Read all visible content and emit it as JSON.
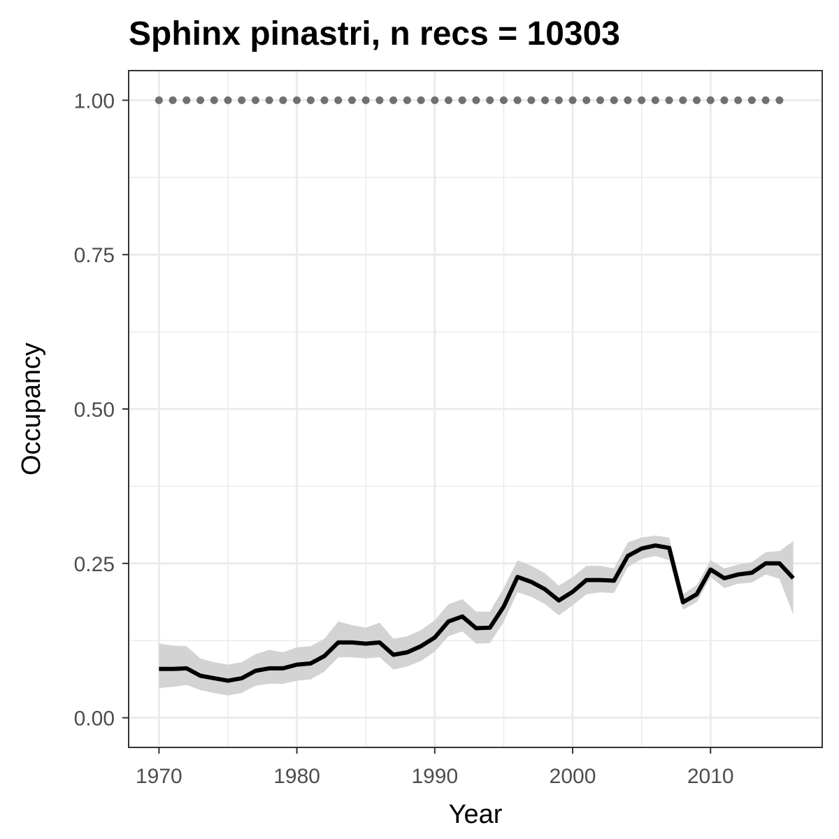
{
  "chart_data": {
    "type": "line",
    "title": "Sphinx pinastri, n recs = 10303",
    "xlabel": "Year",
    "ylabel": "Occupancy",
    "xlim": [
      1967.8,
      2018.1
    ],
    "ylim": [
      -0.048,
      1.048
    ],
    "x_ticks": [
      1970,
      1980,
      1990,
      2000,
      2010
    ],
    "x_tick_labels": [
      "1970",
      "1980",
      "1990",
      "2000",
      "2010"
    ],
    "y_ticks": [
      0,
      0.25,
      0.5,
      0.75,
      1.0
    ],
    "y_tick_labels": [
      "0.00",
      "0.25",
      "0.50",
      "0.75",
      "1.00"
    ],
    "grid": true,
    "colors": {
      "line": "#000000",
      "ribbon": "#d3d3d3",
      "points": "#707070",
      "grid": "#ebebeb",
      "border": "#333333"
    },
    "series": [
      {
        "x": [
          1970,
          1971,
          1972,
          1973,
          1974,
          1975,
          1976,
          1977,
          1978,
          1979,
          1980,
          1981,
          1982,
          1983,
          1984,
          1985,
          1986,
          1987,
          1988,
          1989,
          1990,
          1991,
          1992,
          1993,
          1994,
          1995,
          1996,
          1997,
          1998,
          1999,
          2000,
          2001,
          2002,
          2003,
          2004,
          2005,
          2006,
          2007,
          2008,
          2009,
          2010,
          2011,
          2012,
          2013,
          2014,
          2015,
          2016
        ],
        "values": [
          0.079,
          0.079,
          0.08,
          0.068,
          0.064,
          0.06,
          0.064,
          0.076,
          0.08,
          0.08,
          0.086,
          0.088,
          0.1,
          0.122,
          0.122,
          0.12,
          0.122,
          0.102,
          0.106,
          0.116,
          0.13,
          0.156,
          0.164,
          0.145,
          0.146,
          0.18,
          0.228,
          0.22,
          0.208,
          0.19,
          0.204,
          0.223,
          0.223,
          0.222,
          0.262,
          0.274,
          0.279,
          0.275,
          0.187,
          0.2,
          0.24,
          0.226,
          0.232,
          0.235,
          0.25,
          0.25,
          0.226
        ],
        "lower": [
          0.048,
          0.05,
          0.053,
          0.045,
          0.04,
          0.036,
          0.04,
          0.052,
          0.055,
          0.055,
          0.06,
          0.062,
          0.075,
          0.098,
          0.098,
          0.096,
          0.098,
          0.078,
          0.083,
          0.092,
          0.107,
          0.132,
          0.14,
          0.12,
          0.121,
          0.155,
          0.203,
          0.196,
          0.184,
          0.166,
          0.182,
          0.2,
          0.203,
          0.202,
          0.244,
          0.257,
          0.262,
          0.255,
          0.175,
          0.187,
          0.228,
          0.21,
          0.217,
          0.219,
          0.232,
          0.225,
          0.167
        ],
        "upper": [
          0.12,
          0.117,
          0.116,
          0.096,
          0.09,
          0.086,
          0.09,
          0.103,
          0.11,
          0.106,
          0.114,
          0.116,
          0.128,
          0.156,
          0.15,
          0.146,
          0.154,
          0.128,
          0.132,
          0.142,
          0.158,
          0.184,
          0.192,
          0.172,
          0.172,
          0.21,
          0.255,
          0.246,
          0.234,
          0.214,
          0.228,
          0.246,
          0.246,
          0.242,
          0.284,
          0.292,
          0.295,
          0.292,
          0.2,
          0.215,
          0.255,
          0.242,
          0.248,
          0.252,
          0.268,
          0.27,
          0.286
        ]
      },
      {
        "type": "scatter",
        "x": [
          1970,
          1971,
          1972,
          1973,
          1974,
          1975,
          1976,
          1977,
          1978,
          1979,
          1980,
          1981,
          1982,
          1983,
          1984,
          1985,
          1986,
          1987,
          1988,
          1989,
          1990,
          1991,
          1992,
          1993,
          1994,
          1995,
          1996,
          1997,
          1998,
          1999,
          2000,
          2001,
          2002,
          2003,
          2004,
          2005,
          2006,
          2007,
          2008,
          2009,
          2010,
          2011,
          2012,
          2013,
          2014,
          2015
        ],
        "values": [
          1,
          1,
          1,
          1,
          1,
          1,
          1,
          1,
          1,
          1,
          1,
          1,
          1,
          1,
          1,
          1,
          1,
          1,
          1,
          1,
          1,
          1,
          1,
          1,
          1,
          1,
          1,
          1,
          1,
          1,
          1,
          1,
          1,
          1,
          1,
          1,
          1,
          1,
          1,
          1,
          1,
          1,
          1,
          1,
          1,
          1
        ]
      }
    ]
  }
}
